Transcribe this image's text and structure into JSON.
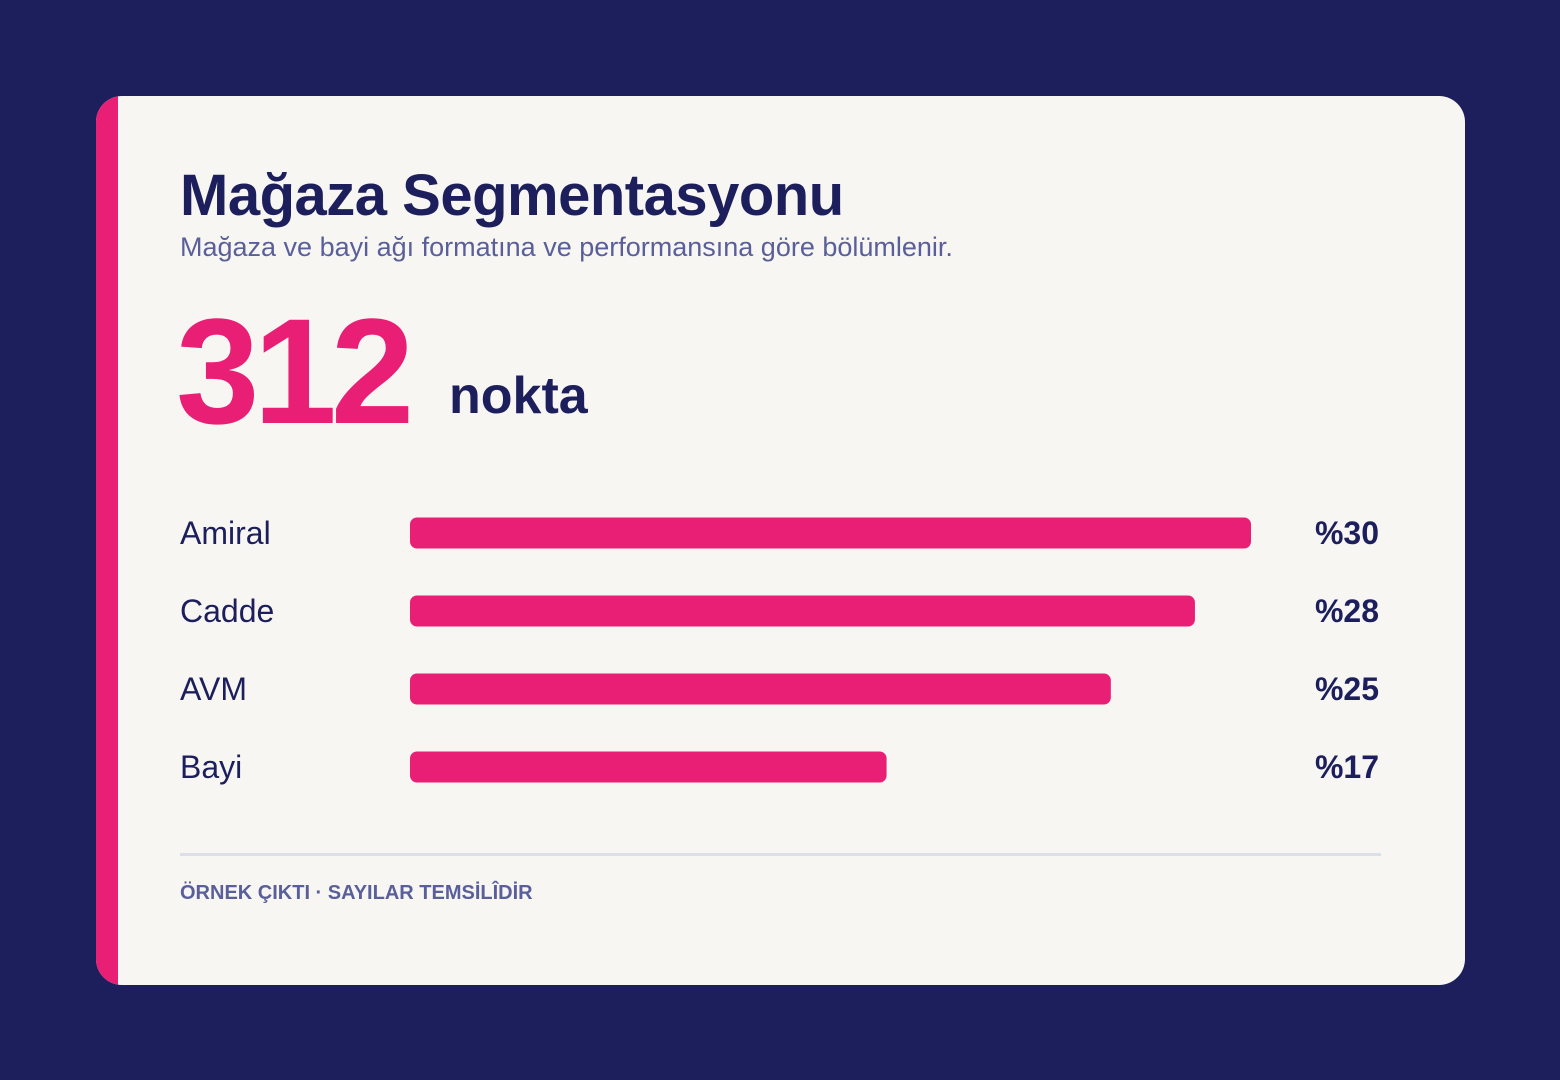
{
  "title": "Mağaza Segmentasyonu",
  "subtitle": "Mağaza ve bayi ağı formatına ve performansına göre bölümlenir.",
  "kpi": {
    "value": "312",
    "unit": "nokta"
  },
  "footnote": "ÖRNEK ÇIKTI · SAYILAR TEMSİLÎDİR",
  "colors": {
    "background": "#1c1f5c",
    "card": "#f7f6f3",
    "accent": "#e91e75",
    "text_primary": "#1c1f5c",
    "text_secondary": "#5a5f9a",
    "divider": "#dcdee9"
  },
  "chart_data": {
    "type": "bar",
    "orientation": "horizontal",
    "categories": [
      "Amiral",
      "Cadde",
      "AVM",
      "Bayi"
    ],
    "values": [
      30,
      28,
      25,
      17
    ],
    "value_labels": [
      "%30",
      "%28",
      "%25",
      "%17"
    ],
    "unit": "%",
    "xlim": [
      0,
      30
    ],
    "grid": false,
    "legend": "none",
    "bar_color": "#e91e75"
  }
}
